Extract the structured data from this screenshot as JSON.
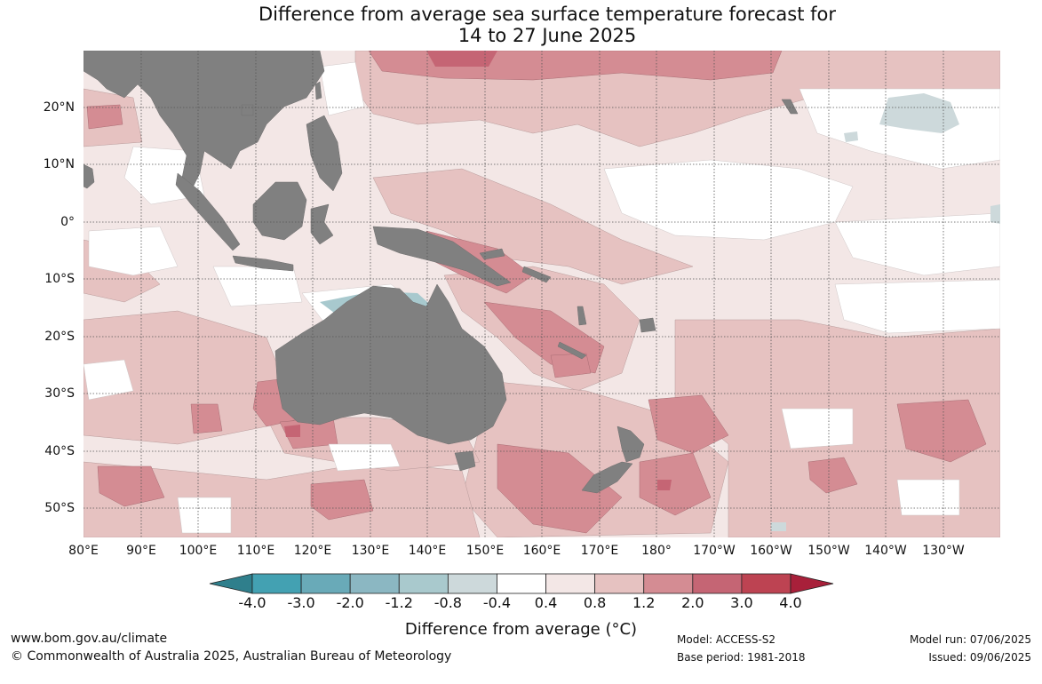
{
  "title": {
    "line1": "Difference from average sea surface temperature forecast for",
    "line2": "14 to 27 June 2025"
  },
  "map": {
    "latitude_labels": [
      "20°N",
      "10°N",
      "0°",
      "10°S",
      "20°S",
      "30°S",
      "40°S",
      "50°S"
    ],
    "longitude_labels": [
      "80°E",
      "90°E",
      "100°E",
      "110°E",
      "120°E",
      "130°E",
      "140°E",
      "150°E",
      "160°E",
      "170°E",
      "180°",
      "170°W",
      "160°W",
      "150°W",
      "140°W",
      "130°W"
    ],
    "colors": {
      "land": "#808080",
      "ocean_background": "#f3e7e6",
      "anomaly_0_4_to_0_8": "#f3e7e6",
      "anomaly_0_8_to_1_2": "#e6c2c1",
      "anomaly_1_2_to_2_0": "#d48c93",
      "anomaly_2_0_to_3_0": "#c56574",
      "anomaly_neg_0_4": "#cdd9db",
      "anomaly_neg_0_8": "#a8c9ce",
      "near_zero": "#ffffff"
    }
  },
  "colorbar": {
    "title": "Difference from average (°C)",
    "tick_labels": [
      "-4.0",
      "-3.0",
      "-2.0",
      "-1.2",
      "-0.8",
      "-0.4",
      "0.4",
      "0.8",
      "1.2",
      "2.0",
      "3.0",
      "4.0"
    ],
    "colors": [
      "#2f7f8c",
      "#43a1b2",
      "#69aab8",
      "#8bb7c2",
      "#a9c9cd",
      "#cdd9db",
      "#ffffff",
      "#f3e7e6",
      "#e6c2c1",
      "#d48c93",
      "#c56574",
      "#bd4352",
      "#a8203a"
    ]
  },
  "footer": {
    "website": "www.bom.gov.au/climate",
    "copyright": "© Commonwealth of Australia 2025, Australian Bureau of Meteorology",
    "model": "Model: ACCESS-S2",
    "base_period": "Base period: 1981-2018",
    "model_run": "Model run: 07/06/2025",
    "issued": "Issued: 09/06/2025"
  }
}
